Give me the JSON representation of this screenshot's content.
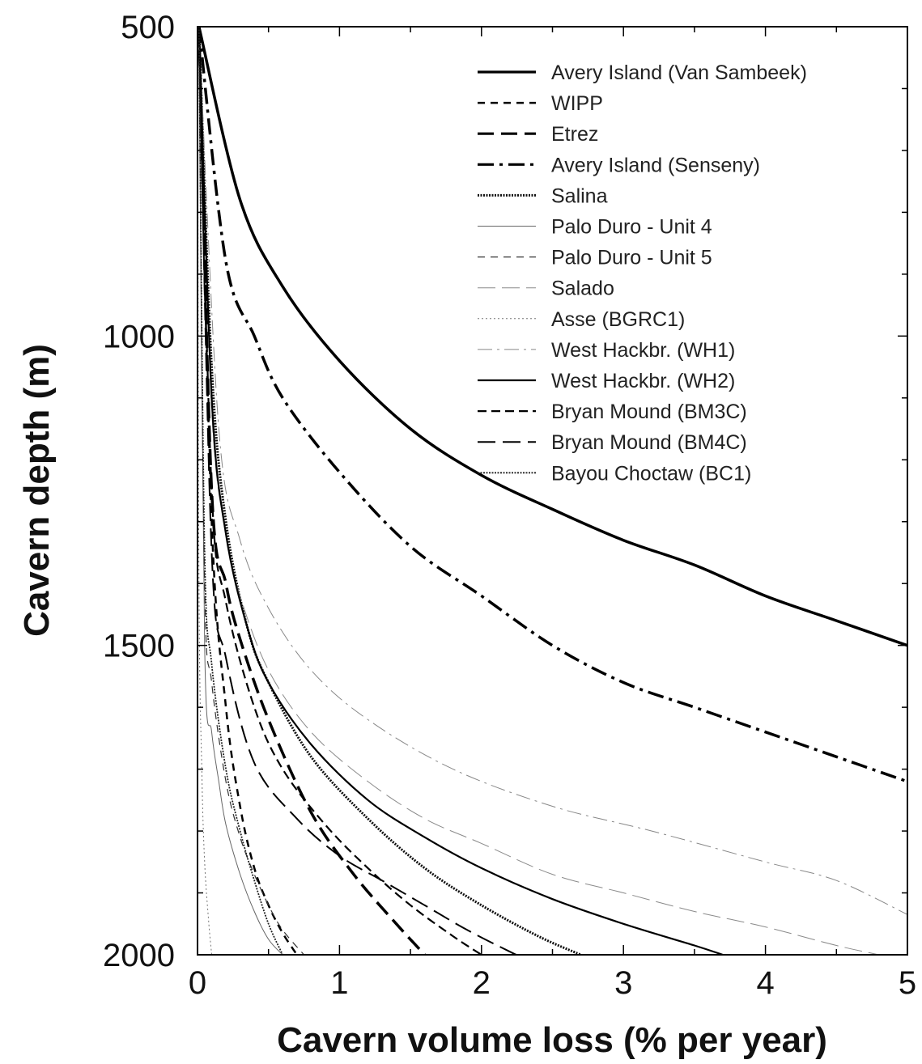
{
  "chart_data": {
    "type": "line",
    "title": "",
    "xlabel": "Cavern volume loss (% per year)",
    "ylabel": "Cavern depth (m)",
    "xlim": [
      0,
      5
    ],
    "ylim": [
      2000,
      500
    ],
    "y_inverted": true,
    "grid": false,
    "legend_placement": "top-right",
    "x_ticks": [
      0,
      1,
      2,
      3,
      4,
      5
    ],
    "y_ticks": [
      500,
      1000,
      1500,
      2000
    ],
    "x_minor_step": 0.5,
    "y_minor_step": 100,
    "series": [
      {
        "name": "Avery Island (Van Sambeek)",
        "style": "solid",
        "width": 3.5,
        "color": "#000000",
        "x": [
          0.01,
          0.3,
          0.6,
          1.0,
          1.5,
          2.0,
          2.5,
          3.0,
          3.5,
          4.0,
          4.5,
          5.0
        ],
        "y": [
          500,
          780,
          920,
          1040,
          1150,
          1225,
          1280,
          1330,
          1370,
          1420,
          1460,
          1500
        ]
      },
      {
        "name": "WIPP",
        "style": "dash-short",
        "width": 2.5,
        "color": "#000000",
        "x": [
          0.01,
          0.1,
          0.2,
          0.3,
          0.4,
          0.5,
          0.6,
          0.7
        ],
        "y": [
          500,
          1300,
          1600,
          1760,
          1860,
          1920,
          1965,
          2000
        ]
      },
      {
        "name": "Etrez",
        "style": "dash-long-bold",
        "width": 3.5,
        "color": "#000000",
        "x": [
          0.01,
          0.1,
          0.2,
          0.3,
          0.5,
          0.8,
          1.1,
          1.4,
          1.6
        ],
        "y": [
          500,
          1250,
          1400,
          1490,
          1620,
          1770,
          1870,
          1950,
          2000
        ]
      },
      {
        "name": "Avery Island (Senseny)",
        "style": "dash-dot",
        "width": 3.5,
        "color": "#000000",
        "x": [
          0.01,
          0.2,
          0.4,
          0.6,
          1.0,
          1.5,
          2.0,
          2.5,
          3.0,
          3.5,
          4.0,
          4.5,
          5.0
        ],
        "y": [
          500,
          880,
          1000,
          1100,
          1220,
          1340,
          1420,
          1500,
          1560,
          1600,
          1640,
          1680,
          1720
        ]
      },
      {
        "name": "Salina",
        "style": "dotted-dense",
        "width": 3.0,
        "color": "#111111",
        "x": [
          0.01,
          0.1,
          0.2,
          0.35,
          0.5,
          0.8,
          1.2,
          1.6,
          2.0,
          2.4,
          2.7
        ],
        "y": [
          500,
          1050,
          1300,
          1470,
          1560,
          1680,
          1780,
          1860,
          1920,
          1970,
          2000
        ]
      },
      {
        "name": "Palo Duro - Unit 4",
        "style": "solid-thin",
        "width": 1.0,
        "color": "#666666",
        "x": [
          0.01,
          0.05,
          0.1,
          0.15,
          0.2,
          0.3,
          0.4,
          0.5,
          0.6
        ],
        "y": [
          500,
          1500,
          1640,
          1720,
          1790,
          1870,
          1930,
          1975,
          2000
        ]
      },
      {
        "name": "Palo Duro - Unit 5",
        "style": "dash-thin",
        "width": 1.2,
        "color": "#333333",
        "x": [
          0.01,
          0.05,
          0.1,
          0.2,
          0.3,
          0.4,
          0.5,
          0.6,
          0.75
        ],
        "y": [
          500,
          1400,
          1560,
          1720,
          1810,
          1870,
          1920,
          1960,
          2000
        ]
      },
      {
        "name": "Salado",
        "style": "dash-long-light",
        "width": 1.0,
        "color": "#8a8a8a",
        "x": [
          0.01,
          0.1,
          0.2,
          0.3,
          0.5,
          0.8,
          1.2,
          1.6,
          2.0,
          2.5,
          3.0,
          3.5,
          4.0,
          4.5,
          4.8
        ],
        "y": [
          500,
          1120,
          1320,
          1420,
          1540,
          1640,
          1720,
          1780,
          1820,
          1870,
          1900,
          1930,
          1955,
          1985,
          2000
        ]
      },
      {
        "name": "Asse (BGRC1)",
        "style": "dotted-light",
        "width": 1.0,
        "color": "#777777",
        "x": [
          0.001,
          0.01,
          0.03,
          0.05,
          0.08,
          0.1
        ],
        "y": [
          500,
          1400,
          1700,
          1850,
          1950,
          2000
        ]
      },
      {
        "name": "West Hackbr. (WH1)",
        "style": "dash-dot-light",
        "width": 1.0,
        "color": "#888888",
        "x": [
          0.01,
          0.15,
          0.3,
          0.5,
          0.8,
          1.2,
          1.8,
          2.5,
          3.2,
          4.0,
          4.5,
          5.0
        ],
        "y": [
          500,
          1150,
          1330,
          1440,
          1540,
          1620,
          1700,
          1760,
          1800,
          1850,
          1880,
          1935
        ]
      },
      {
        "name": "West Hackbr. (WH2)",
        "style": "solid",
        "width": 2.2,
        "color": "#000000",
        "x": [
          0.01,
          0.1,
          0.2,
          0.35,
          0.5,
          0.8,
          1.2,
          1.6,
          2.0,
          2.5,
          3.0,
          3.5,
          3.7
        ],
        "y": [
          500,
          1100,
          1320,
          1470,
          1560,
          1660,
          1750,
          1810,
          1860,
          1910,
          1950,
          1985,
          2000
        ]
      },
      {
        "name": "Bryan Mound (BM3C)",
        "style": "dash-medium",
        "width": 2.2,
        "color": "#000000",
        "x": [
          0.01,
          0.1,
          0.2,
          0.4,
          0.6,
          0.9,
          1.2,
          1.5,
          1.8,
          2.0
        ],
        "y": [
          500,
          1250,
          1430,
          1600,
          1700,
          1790,
          1860,
          1920,
          1970,
          2000
        ]
      },
      {
        "name": "Bryan Mound (BM4C)",
        "style": "dash-long",
        "width": 2.0,
        "color": "#000000",
        "x": [
          0.01,
          0.1,
          0.2,
          0.4,
          0.7,
          1.0,
          1.3,
          1.6,
          1.9,
          2.2,
          2.25
        ],
        "y": [
          500,
          1350,
          1520,
          1690,
          1780,
          1840,
          1880,
          1920,
          1960,
          1995,
          2000
        ]
      },
      {
        "name": "Bayou Choctaw (BC1)",
        "style": "dotted-dense",
        "width": 1.8,
        "color": "#222222",
        "x": [
          0.01,
          0.05,
          0.1,
          0.2,
          0.3,
          0.4,
          0.5,
          0.6
        ],
        "y": [
          500,
          1350,
          1530,
          1700,
          1800,
          1880,
          1950,
          2000
        ]
      }
    ]
  }
}
